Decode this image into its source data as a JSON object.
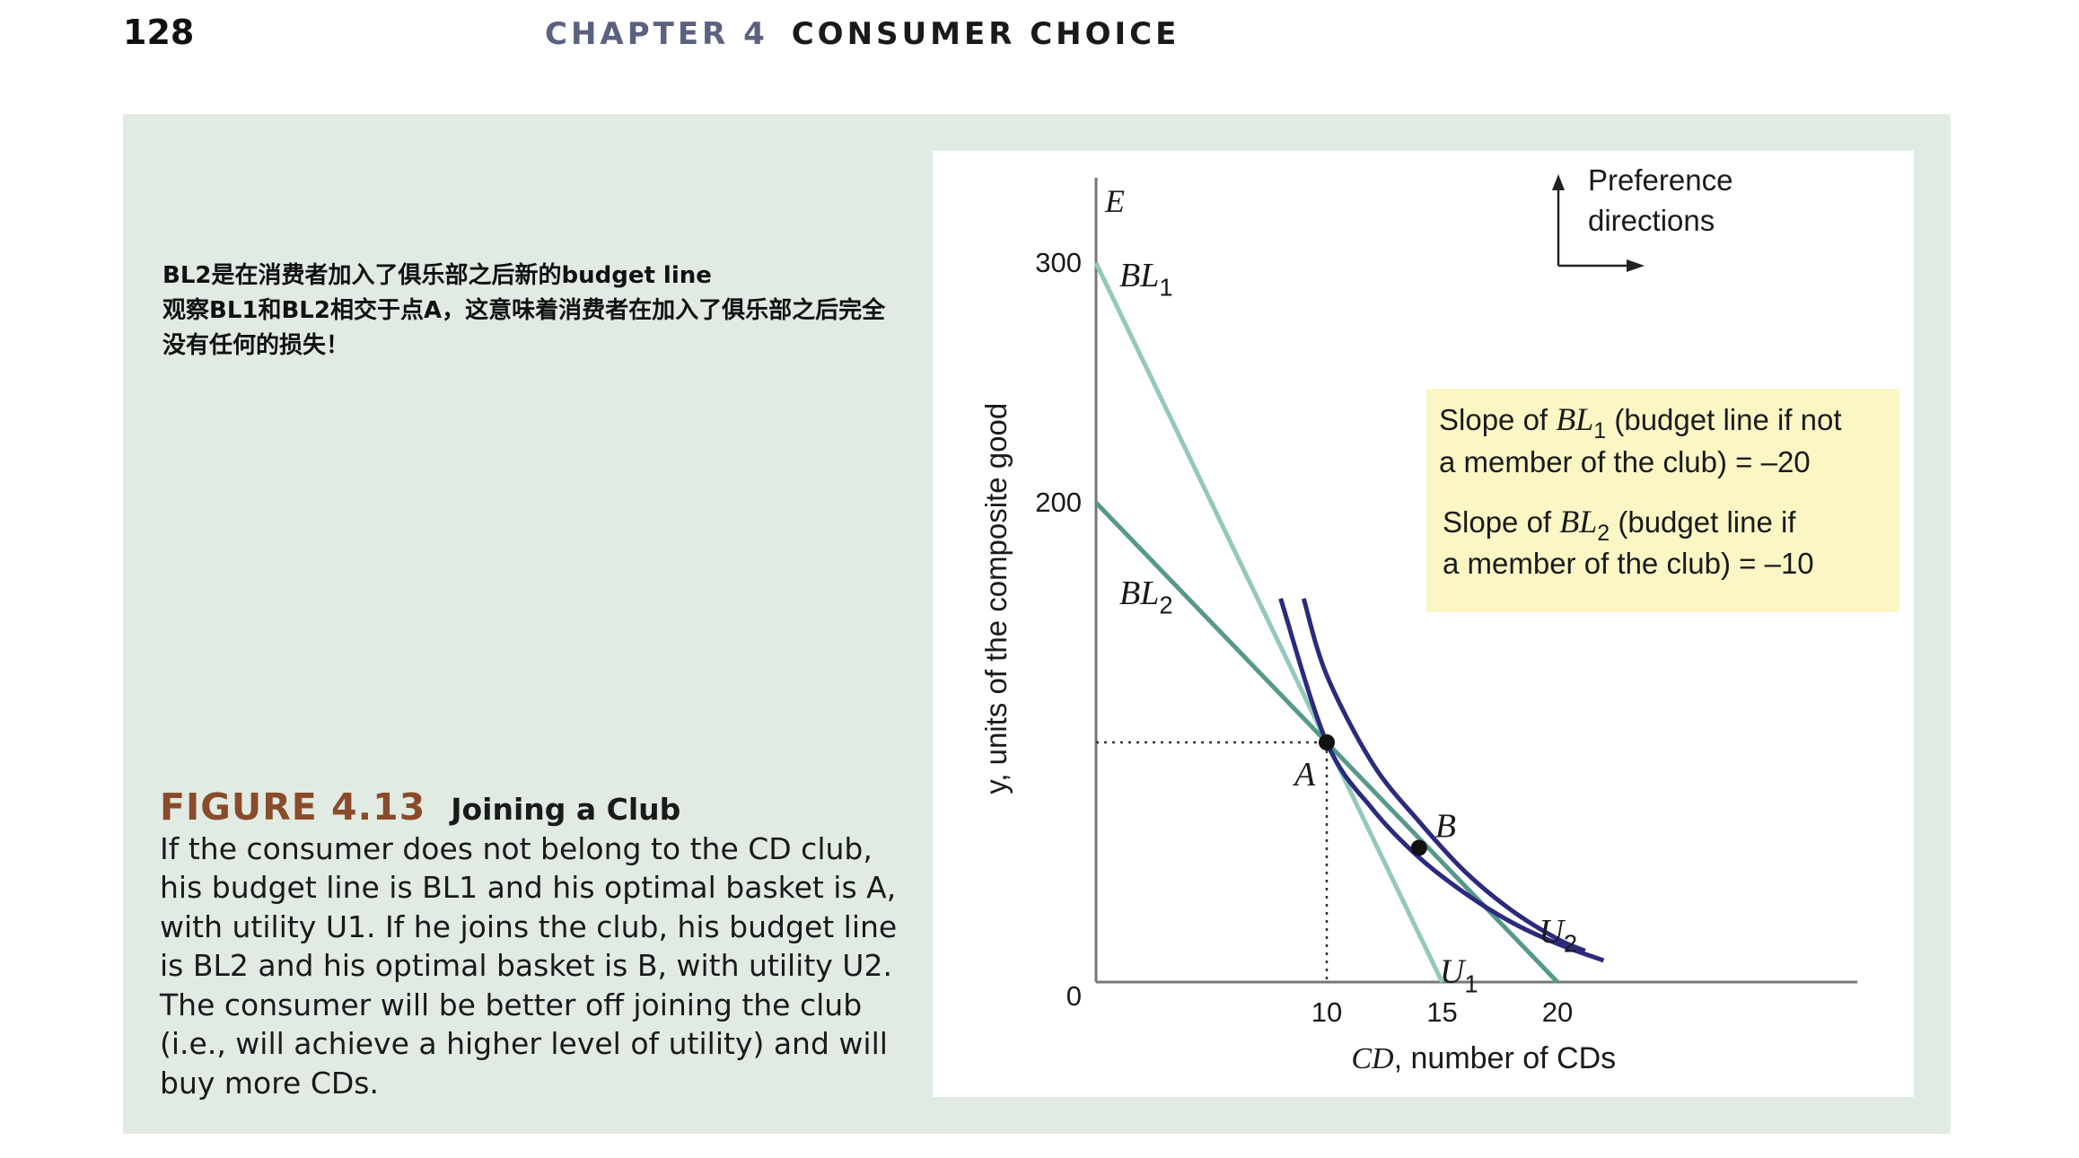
{
  "page": {
    "number": "128",
    "chapter_label": "CHAPTER 4",
    "chapter_title": "CONSUMER CHOICE"
  },
  "annotation": {
    "lines": [
      "BL2是在消费者加入了俱乐部之后新的budget line",
      "观察BL1和BL2相交于点A，这意味着消费者在加入了俱乐部之后完全",
      "没有任何的损失！"
    ]
  },
  "caption": {
    "figure_number": "FIGURE 4.13",
    "figure_title": "Joining a Club",
    "lines": [
      "If the consumer does not belong to the CD club,",
      "his budget line is BL1 and his optimal basket is A,",
      "with utility U1. If he joins the club, his budget line",
      "is BL2 and his optimal basket is B, with utility U2.",
      "The consumer will be better off joining the club",
      "(i.e., will achieve a higher level of utility) and will",
      "buy more CDs."
    ]
  },
  "colors": {
    "bl1": "#93c9bc",
    "bl2": "#56998a",
    "indifference": "#2b2a7e",
    "axis": "#777777",
    "callout_bg": "#fbf6c4",
    "panel_bg": "#e1ebe4",
    "figure_number": "#8a4b2a"
  },
  "chart_data": {
    "type": "line",
    "title": "",
    "xlabel_var": "CD",
    "xlabel": ", number of CDs",
    "ylabel": "y, units of the composite good",
    "top_label": "E",
    "xlim": [
      0,
      33
    ],
    "ylim": [
      0,
      330
    ],
    "x_ticks": [
      10,
      15,
      20
    ],
    "y_ticks": [
      200,
      300
    ],
    "origin_label": "0",
    "grid": false,
    "series": [
      {
        "name": "BL",
        "sub": "1",
        "kind": "budget",
        "x": [
          0,
          15
        ],
        "y": [
          300,
          0
        ]
      },
      {
        "name": "BL",
        "sub": "2",
        "kind": "budget",
        "x": [
          0,
          20
        ],
        "y": [
          200,
          0
        ]
      },
      {
        "name": "U",
        "sub": "1",
        "kind": "indifference",
        "x": [
          8,
          10,
          12,
          14,
          16,
          18,
          20,
          22
        ],
        "y": [
          160,
          100,
          72,
          52,
          37,
          25,
          16,
          9
        ]
      },
      {
        "name": "U",
        "sub": "2",
        "kind": "indifference",
        "x": [
          9,
          10,
          12,
          14,
          16,
          18,
          20,
          21.2
        ],
        "y": [
          160,
          128,
          91,
          67,
          46,
          30,
          18,
          13
        ]
      }
    ],
    "points": [
      {
        "label": "A",
        "x": 10,
        "y": 100
      },
      {
        "label": "B",
        "x": 14,
        "y": 56
      }
    ],
    "preference_label": [
      "Preference",
      "directions"
    ],
    "callout": [
      {
        "prefix": "Slope of ",
        "var": "BL",
        "sub": "1",
        "rest_1": " (budget line if not",
        "rest_2": "a member of the club) = –20"
      },
      {
        "prefix": "Slope of ",
        "var": "BL",
        "sub": "2",
        "rest_1": " (budget line if",
        "rest_2": "a member of the club) = –10"
      }
    ]
  }
}
